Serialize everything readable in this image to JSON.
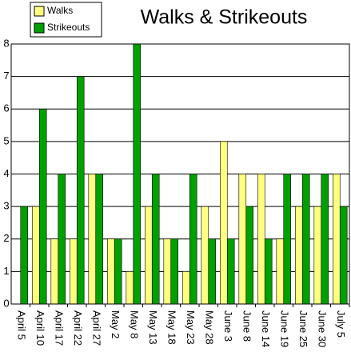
{
  "chart_data": {
    "type": "bar",
    "title": "Walks & Strikeouts",
    "categories": [
      "April 5",
      "April 10",
      "April 17",
      "April 22",
      "April 27",
      "May 2",
      "May 8",
      "May 13",
      "May 18",
      "May 23",
      "May 28",
      "June 3",
      "June 8",
      "June 14",
      "June 19",
      "June 25",
      "June 30",
      "July 5"
    ],
    "series": [
      {
        "name": "Walks",
        "color": "#ffff80",
        "values": [
          0,
          3,
          2,
          2,
          4,
          2,
          1,
          3,
          2,
          1,
          3,
          5,
          4,
          4,
          2,
          3,
          3,
          4
        ]
      },
      {
        "name": "Strikeouts",
        "color": "#00a000",
        "values": [
          3,
          6,
          4,
          7,
          4,
          2,
          8,
          4,
          2,
          4,
          2,
          2,
          3,
          2,
          4,
          4,
          4,
          3
        ]
      }
    ],
    "ylim": [
      0,
      8
    ],
    "yticks": [
      0,
      1,
      2,
      3,
      4,
      5,
      6,
      7,
      8
    ],
    "grid": true,
    "legend": "top-left"
  }
}
